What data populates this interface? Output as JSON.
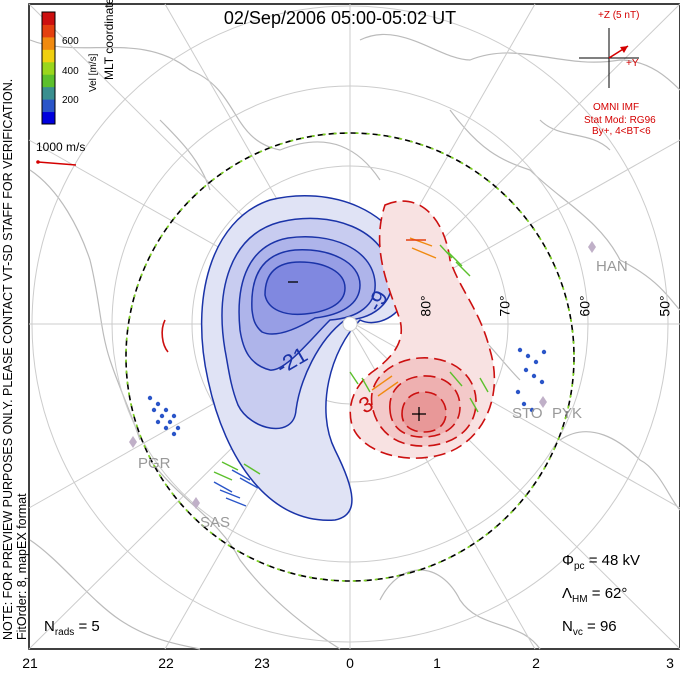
{
  "title": "02/Sep/2006 05:00-05:02 UT",
  "colorbar": {
    "label": "Vel [m/s]",
    "ticks": [
      "600",
      "400",
      "200"
    ],
    "colors": [
      "#0000dd",
      "#2a55c8",
      "#3a8f8f",
      "#5cc02c",
      "#9ad61c",
      "#f0d010",
      "#f08a10",
      "#e44010",
      "#cc1010"
    ]
  },
  "coord_system": "MLT coordinates",
  "ref_vector": "1000 m/s",
  "side_note": "NOTE: FOR PREVIEW PURPOSES ONLY. PLEASE CONTACT VT-SD STAFF FOR VERIFICATION.",
  "fit_info": "FitOrder: 8, mapEX format",
  "imf": {
    "z_label": "+Z (5 nT)",
    "y_label": "+Y",
    "source": "OMNI IMF",
    "model": "Stat Mod: RG96",
    "condition": "By+, 4<BT<6"
  },
  "stats": {
    "phi_pc": "= 48 kV",
    "lambda_hm": "= 62°",
    "n_vc": "= 96",
    "n_rads": "= 5"
  },
  "mlt_labels": [
    "21",
    "22",
    "23",
    "0",
    "1",
    "2",
    "3"
  ],
  "lat_labels": [
    "80°",
    "70°",
    "60°",
    "50°"
  ],
  "contour_labels": [
    "-21",
    "-9",
    "3"
  ],
  "stations": [
    "HAN",
    "PGR",
    "SAS",
    "STO",
    "PYK"
  ],
  "potential_extremes": [
    "−",
    "+"
  ]
}
